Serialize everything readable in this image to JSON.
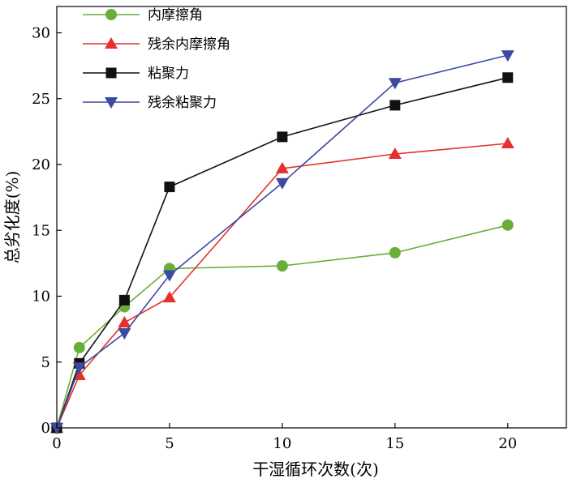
{
  "chart_data": {
    "type": "line",
    "title": "",
    "xlabel": "干湿循环次数(次)",
    "ylabel": "总劣化度(%)",
    "xlim": [
      0,
      22.6
    ],
    "ylim": [
      0,
      32
    ],
    "xticks": [
      0,
      5,
      10,
      15,
      20
    ],
    "yticks": [
      0,
      5,
      10,
      15,
      20,
      25,
      30
    ],
    "xtick_labels": [
      "0",
      "5",
      "10",
      "15",
      "20"
    ],
    "ytick_labels": [
      "0",
      "5",
      "10",
      "15",
      "20",
      "25",
      "30"
    ],
    "grid": false,
    "legend_position": "top-left",
    "x": [
      0,
      1,
      3,
      5,
      10,
      15,
      20
    ],
    "series": [
      {
        "name": "内摩擦角",
        "marker": "circle",
        "color": "#6aae3a",
        "values": [
          0,
          6.1,
          9.2,
          12.1,
          12.3,
          13.3,
          15.4
        ]
      },
      {
        "name": "残余内摩擦角",
        "marker": "triangle-up",
        "color": "#e2322b",
        "values": [
          0,
          4.0,
          8.0,
          9.9,
          19.7,
          20.8,
          21.6
        ]
      },
      {
        "name": "粘聚力",
        "marker": "square",
        "color": "#111111",
        "values": [
          0,
          4.9,
          9.7,
          18.3,
          22.1,
          24.5,
          26.6
        ]
      },
      {
        "name": "残余粘聚力",
        "marker": "triangle-down",
        "color": "#3b4a9e",
        "values": [
          0,
          4.6,
          7.2,
          11.6,
          18.6,
          26.2,
          28.3
        ]
      }
    ]
  }
}
